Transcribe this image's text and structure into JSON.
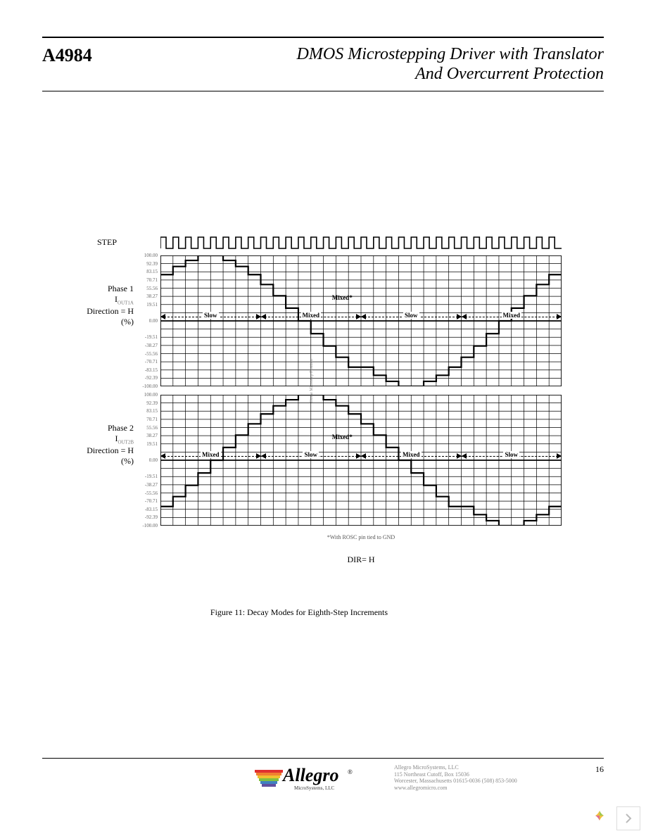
{
  "header": {
    "part_number": "A4984",
    "title_line1": "DMOS Microstepping Driver with Translator",
    "title_line2": "And Overcurrent Protection"
  },
  "step_label": "STEP",
  "step_waveform": {
    "n_pulses": 32,
    "stroke": "#000000",
    "stroke_width": 1.6
  },
  "y_ticks": {
    "positions_pct": [
      0,
      6.25,
      12.5,
      18.75,
      25,
      31.25,
      37.5,
      43.75,
      50,
      56.25,
      62.5,
      68.75,
      75,
      81.25,
      87.5,
      93.75,
      100
    ],
    "labels_top": [
      "100.00",
      "92.39",
      "83.15",
      "70.71",
      "55.56",
      "38.27",
      "19.51",
      "",
      "0.00",
      "",
      "-19.51",
      "-38.27",
      "-55.56",
      "-70.71",
      "-83.15",
      "-92.39",
      "-100.00"
    ]
  },
  "grid": {
    "n_vlines": 33,
    "color": "#000000",
    "line_width": 0.7,
    "border_width": 1.8
  },
  "phase1": {
    "label_line1": "Phase 1",
    "label_line2_html": "I<sub>OUT1A</sub>",
    "label_line3": "Direction = H",
    "label_line4": "(%)",
    "stair_values": [
      70.71,
      83.15,
      92.39,
      100,
      100,
      92.39,
      83.15,
      70.71,
      55.56,
      38.27,
      19.51,
      0,
      -19.51,
      -38.27,
      -55.56,
      -70.71,
      -70.71,
      -83.15,
      -92.39,
      -100,
      -100,
      -92.39,
      -83.15,
      -70.71,
      -55.56,
      -38.27,
      -19.51,
      0,
      19.51,
      38.27,
      55.56,
      70.71
    ],
    "stair_color": "#000000",
    "stair_width": 2.2,
    "decay_segments": [
      {
        "label": "Slow",
        "start_step": 0,
        "end_step": 8
      },
      {
        "label": "Mixed",
        "start_step": 8,
        "end_step": 16
      },
      {
        "label": "Slow",
        "start_step": 16,
        "end_step": 24
      },
      {
        "label": "Mixed",
        "start_step": 24,
        "end_step": 32
      }
    ],
    "extra_mixed": {
      "label": "Mixed*",
      "at_step": 14.5
    }
  },
  "phase2": {
    "label_line1": "Phase 2",
    "label_line2_html": "I<sub>OUT2B</sub>",
    "label_line3": "Direction = H",
    "label_line4": "(%)",
    "stair_values": [
      -70.71,
      -55.56,
      -38.27,
      -19.51,
      0,
      19.51,
      38.27,
      55.56,
      70.71,
      83.15,
      92.39,
      100,
      100,
      92.39,
      83.15,
      70.71,
      55.56,
      38.27,
      19.51,
      0,
      -19.51,
      -38.27,
      -55.56,
      -70.71,
      -70.71,
      -83.15,
      -92.39,
      -100,
      -100,
      -92.39,
      -83.15,
      -70.71
    ],
    "stair_color": "#000000",
    "stair_width": 2.2,
    "decay_segments": [
      {
        "label": "Mixed",
        "start_step": 0,
        "end_step": 8
      },
      {
        "label": "Slow",
        "start_step": 8,
        "end_step": 16
      },
      {
        "label": "Mixed",
        "start_step": 16,
        "end_step": 24
      },
      {
        "label": "Slow",
        "start_step": 24,
        "end_step": 32
      }
    ],
    "extra_mixed": {
      "label": "Mixed*",
      "at_step": 14.5
    }
  },
  "vcenter_label": "Home Microstep Position",
  "footnote": "*With ROSC pin tied to GND",
  "dir_label": "DIR= H",
  "caption": "Figure 11: Decay Modes for Eighth-Step Increments",
  "footer": {
    "company": "Allegro MicroSystems, LLC",
    "addr1": "115 Northeast Cutoff, Box 15036",
    "addr2": "Worcester, Massachusetts 01615-0036 (508) 853-5000",
    "url": "www.allegromicro.com",
    "page_number": "16",
    "logo": {
      "text": "Allegro",
      "sub": "MicroSystems, LLC",
      "stripes": [
        "#e03030",
        "#f08030",
        "#f0c030",
        "#80c040",
        "#4080c0",
        "#6050a0"
      ]
    }
  }
}
